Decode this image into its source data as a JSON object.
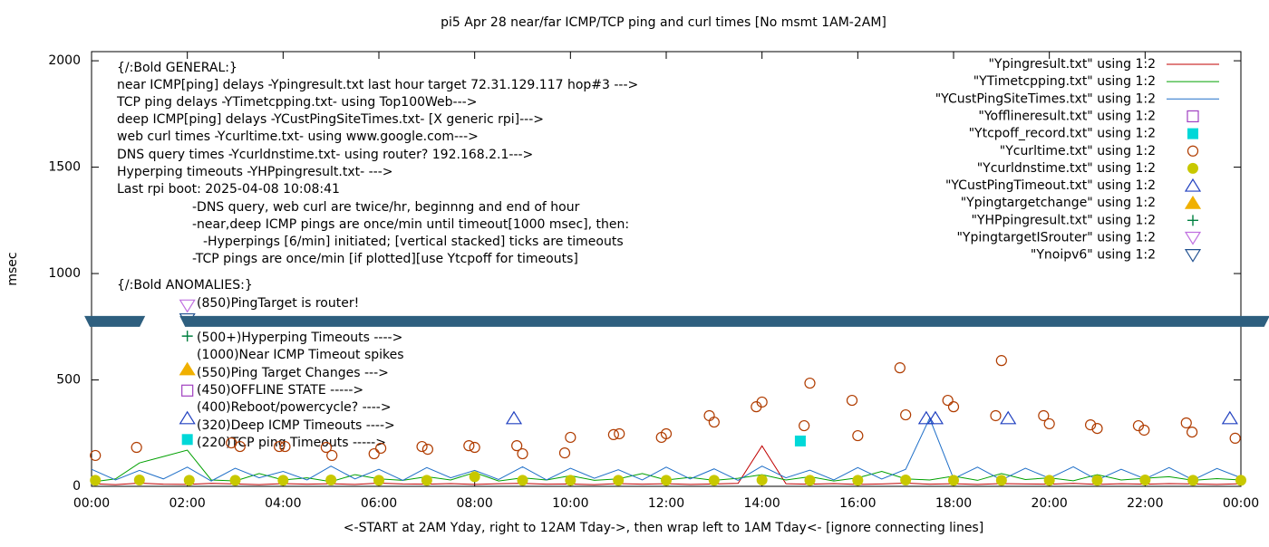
{
  "chart_data": {
    "type": "line",
    "title": "pi5 Apr 28  near/far ICMP/TCP ping and curl times [No msmt 1AM-2AM]",
    "x_label": "<-START at 2AM Yday, right to 12AM Tday->, then wrap left to 1AM Tday<- [ignore connecting lines]",
    "y_label": "msec",
    "xlim": [
      0,
      24
    ],
    "ylim": [
      0,
      2043
    ],
    "xticks": [
      {
        "value": 0,
        "label": "00:00"
      },
      {
        "value": 2,
        "label": "02:00"
      },
      {
        "value": 4,
        "label": "04:00"
      },
      {
        "value": 6,
        "label": "06:00"
      },
      {
        "value": 8,
        "label": "08:00"
      },
      {
        "value": 10,
        "label": "10:00"
      },
      {
        "value": 12,
        "label": "12:00"
      },
      {
        "value": 14,
        "label": "14:00"
      },
      {
        "value": 16,
        "label": "16:00"
      },
      {
        "value": 18,
        "label": "18:00"
      },
      {
        "value": 20,
        "label": "20:00"
      },
      {
        "value": 22,
        "label": "22:00"
      },
      {
        "value": 24,
        "label": "00:00"
      }
    ],
    "yticks": [
      0,
      500,
      1000,
      1500,
      2000
    ],
    "x": [
      0,
      0.5,
      1,
      1.5,
      2,
      2.5,
      3,
      3.5,
      4,
      4.5,
      5,
      5.5,
      6,
      6.5,
      7,
      7.5,
      8,
      8.5,
      9,
      9.5,
      10,
      10.5,
      11,
      11.5,
      12,
      12.5,
      13,
      13.5,
      14,
      14.5,
      15,
      15.5,
      16,
      16.5,
      17,
      17.5,
      18,
      18.5,
      19,
      19.5,
      20,
      20.5,
      21,
      21.5,
      22,
      22.5,
      23,
      23.5,
      24
    ],
    "band": {
      "value": 775,
      "color": "#2e5f7f",
      "segments": [
        [
          -0.15,
          1.12
        ],
        [
          1.84,
          24.6
        ]
      ]
    },
    "annotations": [
      "{/:Bold GENERAL:}",
      "near ICMP[ping] delays -Ypingresult.txt last hour target 72.31.129.117 hop#3 --->",
      "TCP ping delays -YTimetcpping.txt- using Top100Web--->",
      "deep ICMP[ping] delays -YCustPingSiteTimes.txt- [X generic rpi]--->",
      "web curl times -Ycurltime.txt- using www.google.com--->",
      "DNS query times -Ycurldnstime.txt- using router? 192.168.2.1--->",
      "Hyperping timeouts -YHPpingresult.txt- --->",
      "Last rpi boot: 2025-04-08 10:08:41",
      "-DNS query, web curl are twice/hr, beginnng and end of hour",
      "-near,deep ICMP pings are once/min until timeout[1000 msec], then:",
      "-Hyperpings [6/min] initiated; [vertical stacked] ticks are timeouts",
      "-TCP pings are once/min [if plotted][use Ytcpoff for timeouts]",
      "{/:Bold ANOMALIES:}",
      "(850)PingTarget is router!",
      "(500+)Hyperping Timeouts ---->",
      "(1000)Near ICMP Timeout spikes",
      "(550)Ping Target Changes --->",
      "(450)OFFLINE STATE ----->",
      "(400)Reboot/powercycle? ---->",
      "(320)Deep ICMP Timeouts ---->",
      "(220)TCP ping Timeouts ----->"
    ],
    "series": [
      {
        "name": "\"Ypingresult.txt\" using 1:2",
        "color": "#c00000",
        "marker": "line",
        "values": [
          12,
          8,
          15,
          10,
          9,
          14,
          11,
          8,
          13,
          10,
          12,
          9,
          15,
          11,
          10,
          13,
          9,
          12,
          14,
          10,
          11,
          8,
          13,
          10,
          12,
          9,
          11,
          14,
          190,
          12,
          10,
          13,
          9,
          11,
          15,
          10,
          12,
          9,
          13,
          11,
          10,
          14,
          9,
          12,
          10,
          13,
          11,
          9,
          12
        ]
      },
      {
        "name": "\"YTimetcpping.txt\" using 1:2",
        "color": "#00a000",
        "marker": "line",
        "values": [
          20,
          35,
          110,
          140,
          170,
          30,
          25,
          60,
          30,
          40,
          22,
          55,
          35,
          28,
          45,
          30,
          65,
          25,
          40,
          30,
          50,
          28,
          35,
          60,
          30,
          42,
          28,
          38,
          55,
          30,
          45,
          25,
          40,
          70,
          35,
          30,
          48,
          28,
          60,
          32,
          40,
          26,
          55,
          30,
          38,
          45,
          28,
          36,
          30
        ]
      },
      {
        "name": "\"YCustPingSiteTimes.txt\" using 1:2",
        "color": "#1f6fc8",
        "marker": "line",
        "values": [
          80,
          30,
          75,
          35,
          90,
          25,
          85,
          40,
          70,
          30,
          95,
          35,
          80,
          28,
          88,
          40,
          75,
          32,
          92,
          30,
          85,
          38,
          78,
          30,
          90,
          35,
          82,
          28,
          95,
          40,
          76,
          30,
          88,
          34,
          80,
          320,
          36,
          90,
          30,
          85,
          38,
          92,
          30,
          80,
          35,
          88,
          30,
          84,
          40
        ]
      },
      {
        "name": "\"Yofflineresult.txt\" using 1:2",
        "color": "#a040c0",
        "marker": "square-open",
        "x": [
          2.0
        ],
        "values": [
          450
        ]
      },
      {
        "name": "\"Ytcpoff_record.txt\" using 1:2",
        "color": "#00d8d8",
        "marker": "square",
        "x": [
          2.0,
          14.8
        ],
        "values": [
          220,
          213
        ]
      },
      {
        "name": "\"Ycurltime.txt\" using 1:2",
        "color": "#b03c00",
        "marker": "circle-open",
        "x": [
          0.08,
          0.94,
          2.92,
          3.1,
          3.92,
          4.04,
          4.9,
          5.02,
          5.9,
          6.04,
          6.9,
          7.02,
          7.88,
          8.0,
          8.88,
          9.0,
          9.88,
          10.0,
          10.9,
          11.02,
          11.9,
          12.0,
          12.9,
          13.0,
          13.88,
          14.0,
          14.88,
          15.0,
          15.88,
          16.0,
          16.88,
          17.0,
          17.88,
          18.0,
          18.88,
          19.0,
          19.88,
          20.0,
          20.86,
          21.0,
          21.86,
          21.98,
          22.86,
          22.98,
          23.88
        ],
        "values": [
          145,
          183,
          204,
          187,
          187,
          187,
          183,
          145,
          153,
          179,
          187,
          174,
          191,
          183,
          191,
          153,
          157,
          230,
          243,
          247,
          230,
          247,
          332,
          302,
          374,
          396,
          285,
          485,
          404,
          238,
          557,
          336,
          404,
          374,
          332,
          591,
          332,
          294,
          289,
          272,
          285,
          264,
          298,
          255,
          226
        ]
      },
      {
        "name": "\"Ycurldnstime.txt\" using 1:2",
        "color": "#c8c800",
        "marker": "circle",
        "x": [
          0.08,
          1.0,
          2.04,
          3.0,
          4.0,
          5.0,
          6.0,
          7.0,
          8.0,
          9.0,
          10.0,
          11.0,
          12.0,
          13.0,
          14.0,
          15.0,
          16.0,
          17.0,
          18.0,
          19.0,
          20.0,
          21.0,
          22.0,
          23.0,
          24.0
        ],
        "values": [
          28,
          30,
          28,
          28,
          28,
          30,
          28,
          28,
          45,
          28,
          28,
          28,
          28,
          28,
          30,
          28,
          28,
          30,
          28,
          28,
          28,
          28,
          30,
          28,
          28
        ]
      },
      {
        "name": "\"YCustPingTimeout.txt\" using 1:2",
        "color": "#2040c0",
        "marker": "triangle-open",
        "x": [
          2.0,
          8.82,
          17.43,
          17.62,
          19.14,
          23.77
        ],
        "values": [
          320,
          320,
          320,
          320,
          320,
          320
        ]
      },
      {
        "name": "\"Ypingtargetchange\" using 1:2",
        "color": "#f0b000",
        "marker": "triangle",
        "x": [
          2.0
        ],
        "values": [
          550
        ]
      },
      {
        "name": "\"YHPpingresult.txt\" using 1:2",
        "color": "#008040",
        "marker": "plus",
        "x": [
          2.0
        ],
        "values": [
          706
        ]
      },
      {
        "name": "\"YpingtargetISrouter\" using 1:2",
        "color": "#c070e0",
        "marker": "triangle-down-open",
        "x": [
          2.0
        ],
        "values": [
          850
        ]
      },
      {
        "name": "\"Ynoipv6\" using 1:2",
        "color": "#205090",
        "marker": "triangle-down-open",
        "x": [
          2.0
        ],
        "values": [
          785
        ]
      }
    ]
  }
}
